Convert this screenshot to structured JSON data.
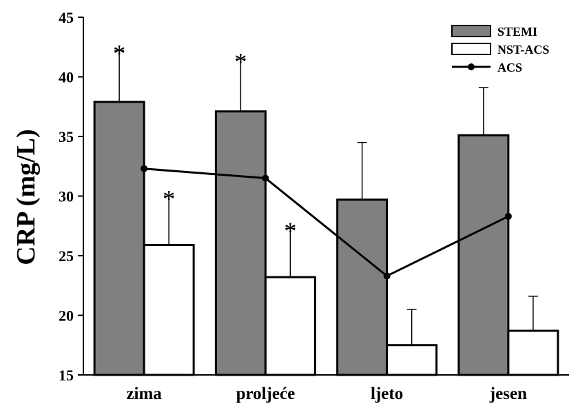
{
  "chart_data": {
    "type": "bar",
    "title": "",
    "xlabel": "",
    "ylabel": "CRP (mg/L)",
    "ylim": [
      15,
      45
    ],
    "yticks": [
      15,
      20,
      25,
      30,
      35,
      40,
      45
    ],
    "categories": [
      "zima",
      "proljeće",
      "ljeto",
      "jesen"
    ],
    "grid": false,
    "legend_position": "top-right",
    "series": [
      {
        "name": "STEMI",
        "kind": "bar",
        "color": "#808080",
        "values": [
          37.9,
          37.1,
          29.7,
          35.1
        ],
        "errors": [
          4.3,
          4.4,
          4.8,
          4.0
        ],
        "significant": [
          true,
          true,
          false,
          false
        ]
      },
      {
        "name": "NST-ACS",
        "kind": "bar",
        "color": "#ffffff",
        "values": [
          25.9,
          23.2,
          17.5,
          18.7
        ],
        "errors": [
          4.1,
          4.1,
          3.0,
          2.9
        ],
        "significant": [
          true,
          true,
          false,
          false
        ]
      },
      {
        "name": "ACS",
        "kind": "line",
        "color": "#000000",
        "values": [
          32.3,
          31.5,
          23.3,
          28.3
        ]
      }
    ],
    "significance_marker": "*"
  }
}
